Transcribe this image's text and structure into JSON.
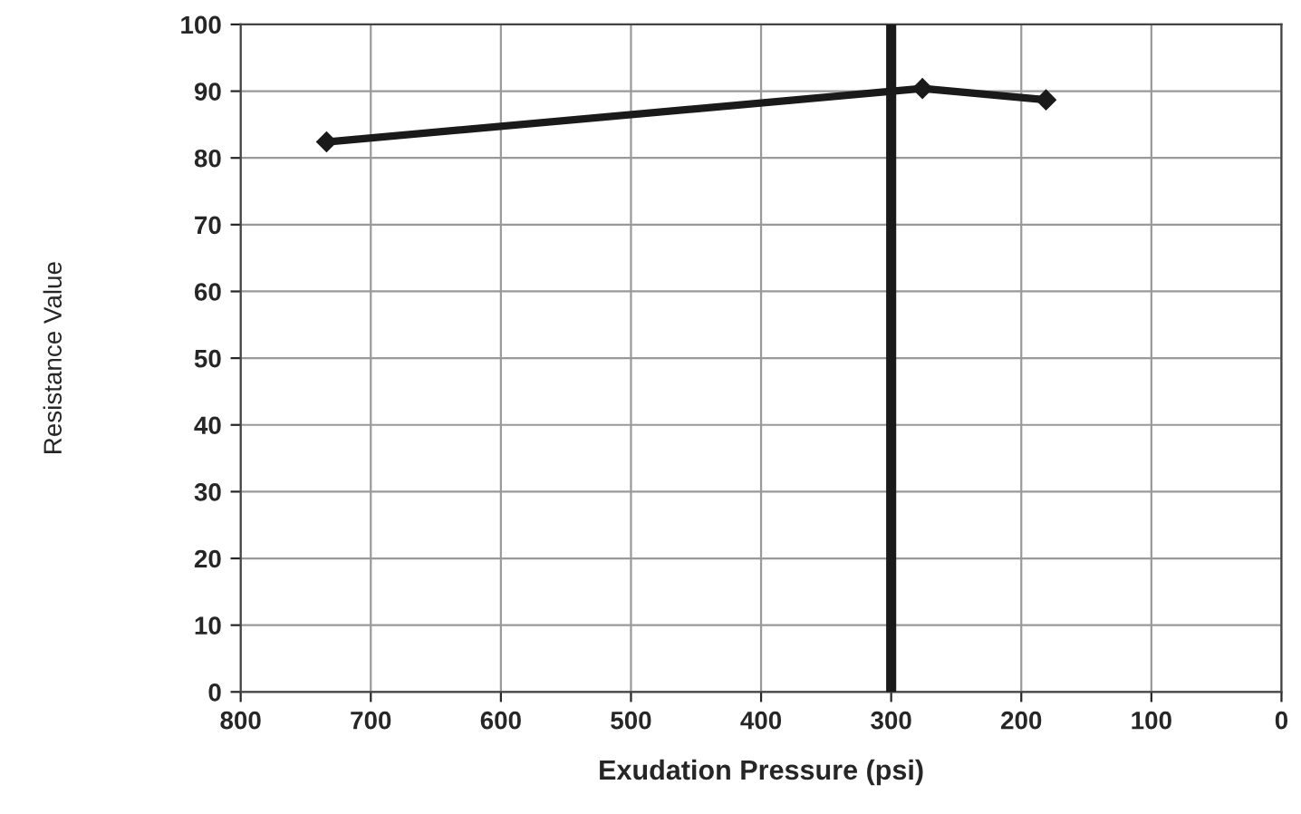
{
  "chart_data": {
    "type": "line",
    "xlabel": "Exudation Pressure (psi)",
    "ylabel": "Resistance Value",
    "x": [
      734,
      276,
      181
    ],
    "series": [
      {
        "color": "#1a1a1a",
        "values": [
          82.4,
          90.4,
          88.7
        ]
      }
    ],
    "xlim": [
      800,
      0
    ],
    "xticks": [
      800,
      700,
      600,
      500,
      400,
      300,
      200,
      100,
      0
    ],
    "ylim": [
      0,
      100
    ],
    "yticks": [
      0,
      10,
      20,
      30,
      40,
      50,
      60,
      70,
      80,
      90,
      100
    ],
    "grid": true,
    "marker": "diamond",
    "line_style": "solid",
    "ref_lines": [
      {
        "axis": "x",
        "value": 300,
        "color": "#1a1a1a"
      }
    ]
  }
}
